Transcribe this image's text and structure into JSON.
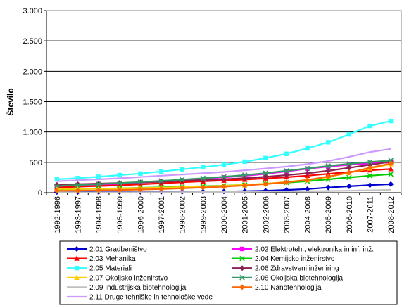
{
  "chart_data": {
    "type": "line",
    "title": "",
    "xlabel": "",
    "ylabel": "Število",
    "ylim": [
      0,
      3000
    ],
    "yticks": [
      0,
      500,
      1000,
      1500,
      2000,
      2500,
      3000
    ],
    "ytick_labels": [
      "0",
      "500",
      "1.000",
      "1.500",
      "2.000",
      "2.500",
      "3.000"
    ],
    "grid": "horizontal",
    "legend_position": "bottom",
    "categories": [
      "1992-1996",
      "1993-1997",
      "1994-1998",
      "1995-1999",
      "1996-2000",
      "1997-2001",
      "1998-2002",
      "1999-2003",
      "2000-2004",
      "2001-2005",
      "2002-2006",
      "2003-2007",
      "2004-2008",
      "2005-2009",
      "2006-2010",
      "2007-2011",
      "2008-2012"
    ],
    "series": [
      {
        "name": "2.01 Gradbeništvo",
        "color": "#0000cc",
        "marker": "diamond",
        "values": [
          10,
          10,
          12,
          12,
          13,
          14,
          15,
          18,
          20,
          25,
          32,
          45,
          60,
          85,
          105,
          125,
          140
        ]
      },
      {
        "name": "2.02 Elektroteh., elektronika in inf. inž.",
        "color": "#ff00ff",
        "marker": "square",
        "values": [
          100,
          112,
          128,
          145,
          165,
          185,
          205,
          228,
          252,
          278,
          312,
          350,
          395,
          430,
          460,
          480,
          500
        ]
      },
      {
        "name": "2.03 Mehanika",
        "color": "#ff0000",
        "marker": "triangle",
        "values": [
          85,
          98,
          110,
          122,
          138,
          155,
          172,
          188,
          200,
          215,
          235,
          255,
          280,
          310,
          340,
          370,
          390
        ]
      },
      {
        "name": "2.04 Kemijsko inženirstvo",
        "color": "#00cc00",
        "marker": "cross",
        "values": [
          55,
          60,
          66,
          72,
          80,
          88,
          95,
          105,
          115,
          128,
          145,
          165,
          190,
          220,
          250,
          280,
          305
        ]
      },
      {
        "name": "2.05 Materiali",
        "color": "#33ffff",
        "marker": "square",
        "values": [
          220,
          240,
          262,
          290,
          315,
          350,
          385,
          420,
          460,
          510,
          570,
          640,
          730,
          830,
          960,
          1100,
          1180
        ]
      },
      {
        "name": "2.06 Zdravstveni inženiring",
        "color": "#8b2252",
        "marker": "diamond",
        "values": [
          130,
          140,
          150,
          160,
          170,
          180,
          195,
          208,
          222,
          240,
          262,
          290,
          320,
          360,
          410,
          460,
          510
        ]
      },
      {
        "name": "2.07 Okoljsko inženirstvo",
        "color": "#ffcc00",
        "marker": "triangle",
        "values": [
          60,
          62,
          66,
          70,
          76,
          82,
          90,
          100,
          112,
          128,
          148,
          175,
          210,
          260,
          330,
          400,
          470
        ]
      },
      {
        "name": "2.08 Okoljska biotehnologija",
        "color": "#339966",
        "marker": "cross",
        "values": [
          110,
          125,
          140,
          158,
          175,
          195,
          215,
          238,
          262,
          290,
          322,
          360,
          400,
          440,
          475,
          505,
          530
        ]
      },
      {
        "name": "2.09 Industrijska biotehnologija",
        "color": "#c0c0c0",
        "marker": "none",
        "values": [
          5,
          5,
          6,
          6,
          7,
          8,
          9,
          10,
          12,
          14,
          17,
          20,
          24,
          28,
          33,
          38,
          45
        ]
      },
      {
        "name": "2.10 Nanotehnologija",
        "color": "#ff6600",
        "marker": "diamond",
        "values": [
          30,
          33,
          38,
          44,
          52,
          60,
          72,
          85,
          100,
          118,
          142,
          172,
          210,
          265,
          330,
          410,
          480
        ]
      },
      {
        "name": "2.11 Druge tehniške in tehnološke vede",
        "color": "#cc99ff",
        "marker": "none",
        "values": [
          190,
          205,
          220,
          238,
          258,
          280,
          300,
          320,
          342,
          368,
          398,
          430,
          470,
          520,
          590,
          670,
          720
        ]
      }
    ]
  }
}
